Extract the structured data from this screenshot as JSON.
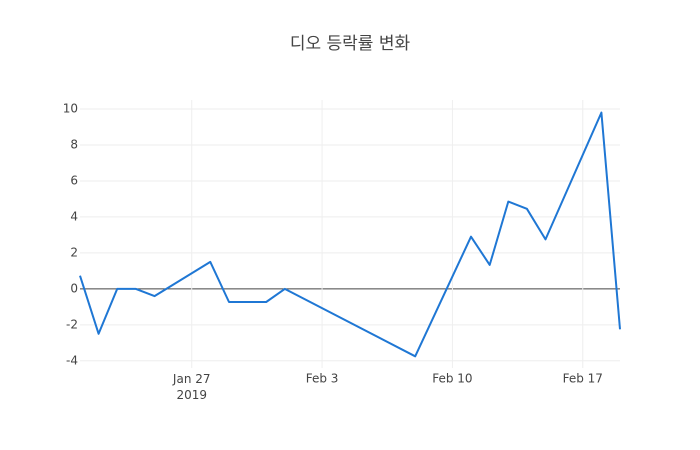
{
  "chart_data": {
    "type": "line",
    "title": "디오 등락률 변화",
    "x": [
      "2019-01-21",
      "2019-01-22",
      "2019-01-23",
      "2019-01-24",
      "2019-01-25",
      "2019-01-28",
      "2019-01-29",
      "2019-01-30",
      "2019-01-31",
      "2019-02-01",
      "2019-02-08",
      "2019-02-11",
      "2019-02-12",
      "2019-02-13",
      "2019-02-14",
      "2019-02-15",
      "2019-02-18",
      "2019-02-19"
    ],
    "series": [
      {
        "color": "#1f77d4",
        "values": [
          0.73,
          -2.5,
          0,
          0,
          -0.4,
          1.5,
          -0.73,
          -0.73,
          -0.73,
          0,
          -3.75,
          2.9,
          1.33,
          4.85,
          4.45,
          2.75,
          9.8,
          -2.25
        ]
      }
    ],
    "xlim": [
      "2019-01-21",
      "2019-02-19"
    ],
    "xticks": [
      {
        "value": "2019-01-27",
        "label": "Jan 27\n2019"
      },
      {
        "value": "2019-02-03",
        "label": "Feb 3"
      },
      {
        "value": "2019-02-10",
        "label": "Feb 10"
      },
      {
        "value": "2019-02-17",
        "label": "Feb 17"
      }
    ],
    "ylim": [
      -4.4,
      10.5
    ],
    "yticks": [
      -4,
      -2,
      0,
      2,
      4,
      6,
      8,
      10
    ],
    "grid": true
  }
}
